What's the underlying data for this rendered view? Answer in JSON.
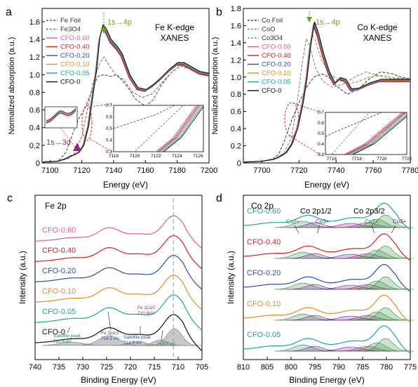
{
  "figure": {
    "panels": {
      "a": {
        "letter": "a",
        "title_lines": [
          "Fe K-edge",
          "XANES"
        ],
        "arrow_label": "1s→4p",
        "prepeak_label": "1s→3d"
      },
      "b": {
        "letter": "b",
        "title_lines": [
          "Co K-edge",
          "XANES"
        ],
        "arrow_label": "1s→4p"
      },
      "c": {
        "letter": "c",
        "title": "Fe 2p"
      },
      "d": {
        "letter": "d",
        "title": "Co 2p"
      }
    }
  },
  "chart_data": [
    {
      "panel": "a",
      "type": "line",
      "xlabel": "Energy (eV)",
      "ylabel": "Normalized absorption (a.u.)",
      "xlim": [
        7095,
        7200
      ],
      "ylim": [
        0,
        1.75
      ],
      "xticks": [
        7100,
        7120,
        7140,
        7160,
        7180,
        7200
      ],
      "yticks": [
        0,
        0.2,
        0.4,
        0.6,
        0.8,
        1.0,
        1.2,
        1.4,
        1.6
      ],
      "legend": "top-left",
      "series": [
        {
          "name": "Fe Foil",
          "color": "#555555",
          "dash": true,
          "points": [
            [
              7095,
              0.01
            ],
            [
              7105,
              0.02
            ],
            [
              7110,
              0.12
            ],
            [
              7114,
              0.32
            ],
            [
              7118,
              0.5
            ],
            [
              7122,
              0.62
            ],
            [
              7126,
              0.8
            ],
            [
              7130,
              0.98
            ],
            [
              7134,
              1.0
            ],
            [
              7138,
              0.98
            ],
            [
              7142,
              1.0
            ],
            [
              7148,
              0.88
            ],
            [
              7154,
              0.72
            ],
            [
              7160,
              0.64
            ],
            [
              7165,
              0.72
            ],
            [
              7170,
              0.88
            ],
            [
              7176,
              1.02
            ],
            [
              7182,
              1.1
            ],
            [
              7188,
              1.07
            ],
            [
              7195,
              1.0
            ],
            [
              7200,
              0.98
            ]
          ]
        },
        {
          "name": "Fe3O4",
          "color": "#777777",
          "dash": true,
          "points": [
            [
              7095,
              0.01
            ],
            [
              7105,
              0.02
            ],
            [
              7112,
              0.05
            ],
            [
              7116,
              0.12
            ],
            [
              7120,
              0.3
            ],
            [
              7124,
              0.65
            ],
            [
              7127,
              0.9
            ],
            [
              7131,
              1.12
            ],
            [
              7134,
              1.2
            ],
            [
              7138,
              1.08
            ],
            [
              7142,
              0.98
            ],
            [
              7146,
              0.95
            ],
            [
              7152,
              0.8
            ],
            [
              7158,
              0.74
            ],
            [
              7164,
              0.78
            ],
            [
              7170,
              0.9
            ],
            [
              7176,
              1.02
            ],
            [
              7182,
              1.1
            ],
            [
              7188,
              1.06
            ],
            [
              7195,
              1.0
            ],
            [
              7200,
              0.98
            ]
          ]
        },
        {
          "name": "CFO-0.60",
          "color": "#e0589f"
        },
        {
          "name": "CFO-0.40",
          "color": "#d42020"
        },
        {
          "name": "CFO-0.20",
          "color": "#2a4fb0"
        },
        {
          "name": "CFO-0.10",
          "color": "#e88a1c"
        },
        {
          "name": "CFO-0.05",
          "color": "#1aa79a"
        },
        {
          "name": "CFO-0",
          "color": "#111111"
        }
      ],
      "cfo_profile": [
        [
          7095,
          0.01
        ],
        [
          7105,
          0.02
        ],
        [
          7110,
          0.05
        ],
        [
          7113,
          0.08
        ],
        [
          7115,
          0.09
        ],
        [
          7118,
          0.12
        ],
        [
          7121,
          0.2
        ],
        [
          7124,
          0.42
        ],
        [
          7127,
          0.8
        ],
        [
          7129,
          1.05
        ],
        [
          7131,
          1.4
        ],
        [
          7133,
          1.54
        ],
        [
          7135,
          1.5
        ],
        [
          7138,
          1.38
        ],
        [
          7142,
          1.3
        ],
        [
          7145,
          1.22
        ],
        [
          7150,
          0.98
        ],
        [
          7155,
          0.84
        ],
        [
          7160,
          0.82
        ],
        [
          7165,
          0.88
        ],
        [
          7170,
          0.96
        ],
        [
          7175,
          1.05
        ],
        [
          7180,
          1.12
        ],
        [
          7184,
          1.12
        ],
        [
          7188,
          1.08
        ],
        [
          7194,
          1.02
        ],
        [
          7200,
          1.0
        ]
      ],
      "inset": {
        "xlim": [
          7118,
          7126.5
        ],
        "ylim": [
          0.3,
          0.7
        ],
        "xticks": [
          7118,
          7120,
          7122,
          7124,
          7126
        ],
        "yticks": [
          0.3,
          0.4,
          0.5,
          0.6,
          0.7
        ]
      }
    },
    {
      "panel": "b",
      "type": "line",
      "xlabel": "Energy (eV)",
      "ylabel": "Normalized absorption (a.u.)",
      "xlim": [
        7690,
        7780
      ],
      "ylim": [
        0,
        1.8
      ],
      "xticks": [
        7700,
        7720,
        7740,
        7760,
        7780
      ],
      "yticks": [
        0,
        0.2,
        0.4,
        0.6,
        0.8,
        1.0,
        1.2,
        1.4,
        1.6,
        1.8
      ],
      "legend": "top-left",
      "series": [
        {
          "name": "Co Foil",
          "color": "#444444",
          "dash": true,
          "points": [
            [
              7690,
              0.01
            ],
            [
              7700,
              0.02
            ],
            [
              7706,
              0.05
            ],
            [
              7709,
              0.1
            ],
            [
              7712,
              0.25
            ],
            [
              7716,
              0.5
            ],
            [
              7720,
              0.7
            ],
            [
              7724,
              0.88
            ],
            [
              7728,
              1.0
            ],
            [
              7732,
              1.04
            ],
            [
              7736,
              1.0
            ],
            [
              7740,
              0.9
            ],
            [
              7746,
              0.8
            ],
            [
              7752,
              0.86
            ],
            [
              7758,
              0.98
            ],
            [
              7764,
              1.06
            ],
            [
              7770,
              1.04
            ],
            [
              7775,
              1.0
            ],
            [
              7780,
              0.98
            ]
          ]
        },
        {
          "name": "CoO",
          "color": "#888888",
          "dash": true,
          "points": [
            [
              7690,
              0.01
            ],
            [
              7700,
              0.02
            ],
            [
              7708,
              0.06
            ],
            [
              7712,
              0.12
            ],
            [
              7716,
              0.3
            ],
            [
              7719,
              0.7
            ],
            [
              7722,
              1.2
            ],
            [
              7724,
              1.45
            ],
            [
              7726,
              1.35
            ],
            [
              7729,
              1.1
            ],
            [
              7733,
              0.95
            ],
            [
              7738,
              0.88
            ],
            [
              7744,
              0.92
            ],
            [
              7750,
              1.0
            ],
            [
              7756,
              1.06
            ],
            [
              7762,
              1.02
            ],
            [
              7770,
              0.98
            ],
            [
              7780,
              0.98
            ]
          ]
        },
        {
          "name": "Co3O4",
          "color": "#9aa23a",
          "dash": true,
          "points": [
            [
              7690,
              0.01
            ],
            [
              7700,
              0.02
            ],
            [
              7708,
              0.05
            ],
            [
              7712,
              0.1
            ],
            [
              7716,
              0.2
            ],
            [
              7719,
              0.38
            ],
            [
              7722,
              0.72
            ],
            [
              7725,
              1.15
            ],
            [
              7727,
              1.5
            ],
            [
              7729,
              1.42
            ],
            [
              7732,
              1.2
            ],
            [
              7736,
              1.05
            ],
            [
              7740,
              0.98
            ],
            [
              7746,
              0.92
            ],
            [
              7752,
              0.95
            ],
            [
              7758,
              1.0
            ],
            [
              7765,
              1.02
            ],
            [
              7772,
              0.99
            ],
            [
              7780,
              0.98
            ]
          ]
        },
        {
          "name": "CFO-0.60",
          "color": "#e0589f"
        },
        {
          "name": "CFO-0.40",
          "color": "#d42020"
        },
        {
          "name": "CFO-0.20",
          "color": "#2a4fb0"
        },
        {
          "name": "CFO-0.10",
          "color": "#e88a1c"
        },
        {
          "name": "CFO-0.05",
          "color": "#1aa79a"
        },
        {
          "name": "CFO-0",
          "color": "#111111"
        }
      ],
      "cfo_profile": [
        [
          7690,
          0.01
        ],
        [
          7700,
          0.02
        ],
        [
          7706,
          0.04
        ],
        [
          7710,
          0.08
        ],
        [
          7713,
          0.12
        ],
        [
          7716,
          0.22
        ],
        [
          7719,
          0.4
        ],
        [
          7722,
          0.7
        ],
        [
          7724,
          0.98
        ],
        [
          7726,
          1.35
        ],
        [
          7728,
          1.62
        ],
        [
          7730,
          1.5
        ],
        [
          7733,
          1.25
        ],
        [
          7736,
          1.05
        ],
        [
          7739,
          0.92
        ],
        [
          7742,
          0.98
        ],
        [
          7745,
          0.96
        ],
        [
          7748,
          0.85
        ],
        [
          7752,
          0.86
        ],
        [
          7758,
          0.92
        ],
        [
          7764,
          0.96
        ],
        [
          7770,
          0.96
        ],
        [
          7780,
          0.96
        ]
      ],
      "inset": {
        "xlim": [
          7715.5,
          7722
        ],
        "ylim": [
          0.3,
          0.7
        ],
        "xticks": [
          7716,
          7718,
          7720,
          7722
        ],
        "yticks": [
          0.3,
          0.4,
          0.5,
          0.6,
          0.7
        ]
      }
    },
    {
      "panel": "c",
      "type": "line",
      "xlabel": "Binding Energy (eV)",
      "ylabel": "Intensity (a.u.)",
      "xlim": [
        740,
        705
      ],
      "xticks": [
        740,
        735,
        730,
        725,
        720,
        715,
        710,
        705
      ],
      "dashed_reference_x": 711,
      "series": [
        {
          "name": "CFO-0.60",
          "color": "#e0589f",
          "offset": 5
        },
        {
          "name": "CFO-0.40",
          "color": "#d42020",
          "offset": 4
        },
        {
          "name": "CFO-0.20",
          "color": "#2a4fb0",
          "offset": 3
        },
        {
          "name": "CFO-0.10",
          "color": "#e88a1c",
          "offset": 2
        },
        {
          "name": "CFO-0.05",
          "color": "#1aa79a",
          "offset": 1
        },
        {
          "name": "CFO-0",
          "color": "#111111",
          "offset": 0
        }
      ],
      "annotations": [
        {
          "text": "Satellite peak",
          "x": 732.4
        },
        {
          "text": "732.4 eV",
          "x": 732.4
        },
        {
          "text": "Fe 2p1/2",
          "x": 724.5
        },
        {
          "text": "724.5 eV",
          "x": 724.5
        },
        {
          "text": "Satellite peak",
          "x": 718.5
        },
        {
          "text": "718.5 eV",
          "x": 718.5
        },
        {
          "text": "Fe 2p3/2",
          "x": 710.8
        },
        {
          "text": "710.8eV",
          "x": 710.8
        },
        {
          "text": "713.7 eV",
          "x": 713.7
        }
      ]
    },
    {
      "panel": "d",
      "type": "line",
      "xlabel": "Binding Energy (eV)",
      "ylabel": "Intensity (a.u.)",
      "xlim": [
        810,
        775
      ],
      "xticks": [
        810,
        805,
        800,
        795,
        790,
        785,
        780,
        775
      ],
      "series": [
        {
          "name": "CFO-0.60",
          "color": "#1aa79a",
          "offset": 4
        },
        {
          "name": "CFO-0.40",
          "color": "#d42020",
          "offset": 3
        },
        {
          "name": "CFO-0.20",
          "color": "#2a4fb0",
          "offset": 2
        },
        {
          "name": "CFO-0.10",
          "color": "#e88a1c",
          "offset": 1
        },
        {
          "name": "CFO-0.05",
          "color": "#1aa79a",
          "offset": 0
        }
      ],
      "annotations": [
        {
          "text": "Co 2p1/2",
          "x": 795.5
        },
        {
          "text": "Co 2p3/2",
          "x": 780.5
        },
        {
          "text": "Co2+",
          "x": 797.5
        },
        {
          "text": "Co3+",
          "x": 793
        },
        {
          "text": "Co2+",
          "x": 782.5
        },
        {
          "text": "Co3+",
          "x": 777.5
        }
      ]
    }
  ]
}
